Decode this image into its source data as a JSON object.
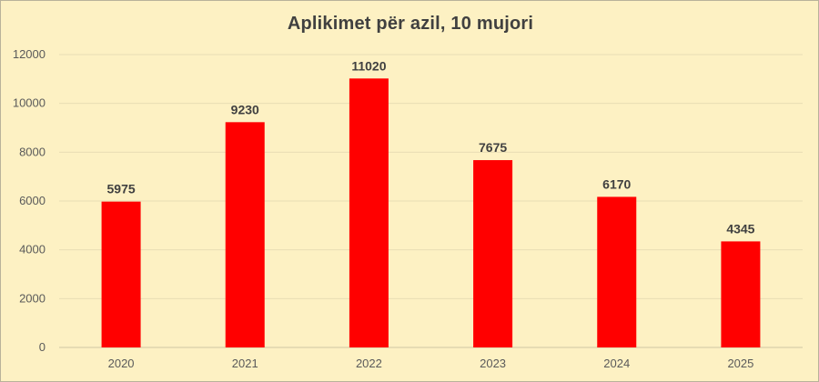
{
  "chart_data": {
    "type": "bar",
    "title": "Aplikimet për azil, 10 mujori",
    "categories": [
      "2020",
      "2021",
      "2022",
      "2023",
      "2024",
      "2025"
    ],
    "values": [
      5975,
      9230,
      11020,
      7675,
      6170,
      4345
    ],
    "data_labels": [
      "5975",
      "9230",
      "11020",
      "7675",
      "6170",
      "4345"
    ],
    "ylim": [
      0,
      12000
    ],
    "yticks": [
      "0",
      "2000",
      "4000",
      "6000",
      "8000",
      "10000",
      "12000"
    ],
    "xlabel": "",
    "ylabel": "",
    "grid": true,
    "legend": "none",
    "colors": {
      "bar": "#ff0000",
      "background": "#fdf1c3",
      "grid": "#e8ddb4",
      "text": "#404040"
    }
  }
}
